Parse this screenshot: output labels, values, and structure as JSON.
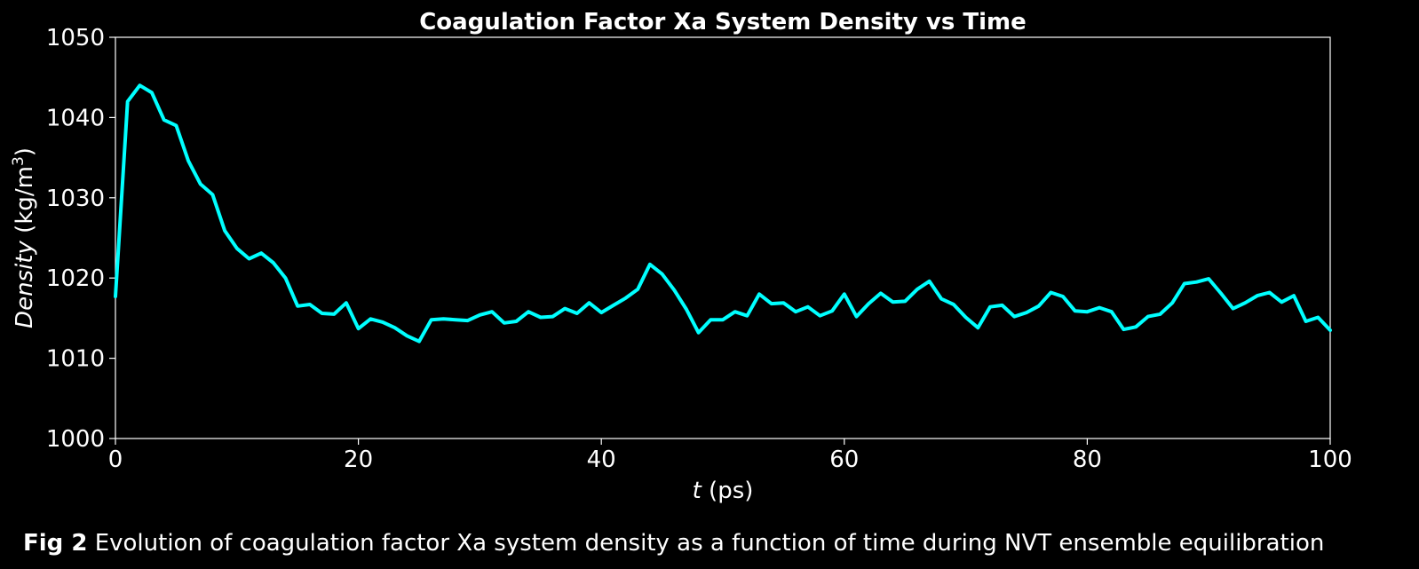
{
  "caption": {
    "label": "Fig 2",
    "text": " Evolution of coagulation factor Xa system density as a function of time during NVT ensemble equilibration"
  },
  "chart_data": {
    "type": "line",
    "title": "Coagulation Factor Xa System Density vs Time",
    "xlabel_var": "t",
    "xlabel_unit": " (ps)",
    "ylabel_var": "Density",
    "ylabel_unit_pre": " (kg/m",
    "ylabel_unit_sup": "3",
    "ylabel_unit_post": ")",
    "xlim": [
      0,
      100
    ],
    "ylim": [
      1000,
      1050
    ],
    "xticks": [
      0,
      20,
      40,
      60,
      80,
      100
    ],
    "yticks": [
      1000,
      1010,
      1020,
      1030,
      1040,
      1050
    ],
    "grid": false,
    "line_color": "#00ffff",
    "series": [
      {
        "x": [
          0,
          1,
          2,
          3,
          4,
          5,
          6,
          7,
          8,
          9,
          10,
          11,
          12,
          13,
          14,
          15,
          16,
          17,
          18,
          19,
          20,
          21,
          22,
          23,
          24,
          25,
          26,
          27,
          28,
          29,
          30,
          31,
          32,
          33,
          34,
          35,
          36,
          37,
          38,
          39,
          40,
          41,
          42,
          43,
          44,
          45,
          46,
          47,
          48,
          49,
          50,
          51,
          52,
          53,
          54,
          55,
          56,
          57,
          58,
          59,
          60,
          61,
          62,
          63,
          64,
          65,
          66,
          67,
          68,
          69,
          70,
          71,
          72,
          73,
          74,
          75,
          76,
          77,
          78,
          79,
          80,
          81,
          82,
          83,
          84,
          85,
          86,
          87,
          88,
          89,
          90,
          91,
          92,
          93,
          94,
          95,
          96,
          97,
          98,
          99,
          100
        ],
        "y": [
          1017.7,
          1042.0,
          1044.0,
          1043.1,
          1039.7,
          1039.0,
          1034.6,
          1031.7,
          1030.4,
          1025.9,
          1023.7,
          1022.4,
          1023.1,
          1021.9,
          1020.0,
          1016.5,
          1016.7,
          1015.6,
          1015.5,
          1016.9,
          1013.7,
          1014.9,
          1014.5,
          1013.8,
          1012.8,
          1012.1,
          1014.8,
          1014.9,
          1014.8,
          1014.7,
          1015.4,
          1015.8,
          1014.4,
          1014.6,
          1015.8,
          1015.1,
          1015.2,
          1016.2,
          1015.6,
          1016.9,
          1015.7,
          1016.6,
          1017.5,
          1018.6,
          1021.7,
          1020.5,
          1018.5,
          1016.1,
          1013.2,
          1014.8,
          1014.8,
          1015.8,
          1015.3,
          1018.0,
          1016.8,
          1016.9,
          1015.8,
          1016.4,
          1015.3,
          1015.9,
          1018.0,
          1015.2,
          1016.8,
          1018.1,
          1017.0,
          1017.1,
          1018.6,
          1019.6,
          1017.4,
          1016.7,
          1015.1,
          1013.8,
          1016.4,
          1016.6,
          1015.2,
          1015.7,
          1016.5,
          1018.2,
          1017.7,
          1015.9,
          1015.8,
          1016.3,
          1015.8,
          1013.6,
          1013.9,
          1015.2,
          1015.5,
          1016.9,
          1019.3,
          1019.5,
          1019.9,
          1018.1,
          1016.2,
          1016.9,
          1017.8,
          1018.2,
          1017.0,
          1017.8,
          1014.6,
          1015.1,
          1013.5
        ]
      }
    ]
  }
}
